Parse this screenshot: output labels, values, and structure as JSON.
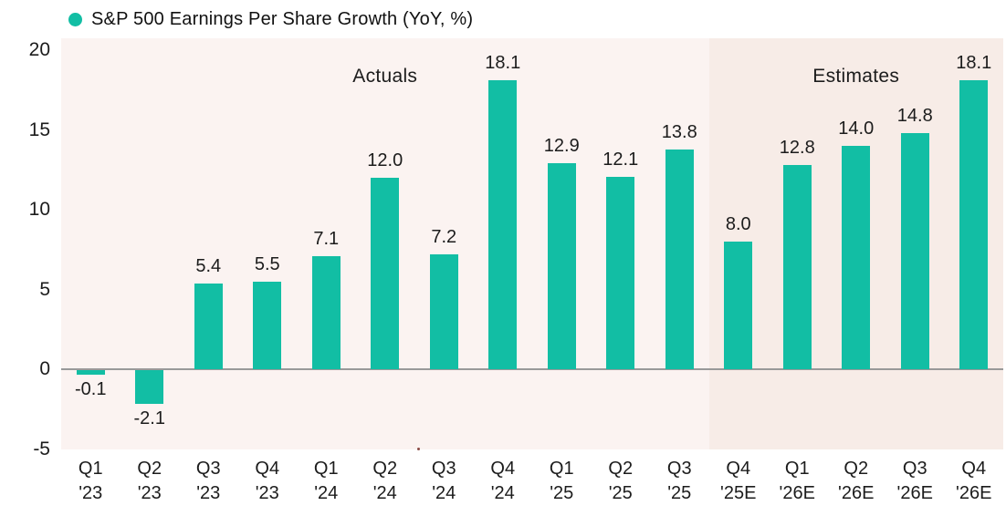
{
  "legend": {
    "marker_color": "#12BEA4",
    "label": "S&P 500 Earnings Per Share Growth (YoY, %)"
  },
  "chart_data": {
    "type": "bar",
    "title": "S&P 500 Earnings Per Share Growth (YoY, %)",
    "categories": [
      "Q1 '23",
      "Q2 '23",
      "Q3 '23",
      "Q4 '23",
      "Q1 '24",
      "Q2 '24",
      "Q3 '24",
      "Q4 '24",
      "Q1 '25",
      "Q2 '25",
      "Q3 '25",
      "Q4 '25E",
      "Q1 '26E",
      "Q2 '26E",
      "Q3 '26E",
      "Q4 '26E"
    ],
    "values": [
      -0.1,
      -2.1,
      5.4,
      5.5,
      7.1,
      12.0,
      7.2,
      18.1,
      12.9,
      12.1,
      13.8,
      8.0,
      12.8,
      14.0,
      14.8,
      18.1
    ],
    "value_labels": [
      "-0.1",
      "-2.1",
      "5.4",
      "5.5",
      "7.1",
      "12.0",
      "7.2",
      "18.1",
      "12.9",
      "12.1",
      "13.8",
      "8.0",
      "12.8",
      "14.0",
      "14.8",
      "18.1"
    ],
    "xlabel": "",
    "ylabel": "",
    "ylim": [
      -5,
      20.75
    ],
    "yticks": [
      20,
      15,
      10,
      5,
      0,
      -5
    ],
    "grid": false,
    "legend_position": "top-left",
    "bar_color": "#12BEA4",
    "zero_line_color": "#999999",
    "sections": [
      {
        "label": "Actuals",
        "start_index": 0,
        "end_index": 11,
        "bg": "#FBF3F1"
      },
      {
        "label": "Estimates",
        "start_index": 11,
        "end_index": 16,
        "bg": "#F7ECE7"
      }
    ]
  }
}
